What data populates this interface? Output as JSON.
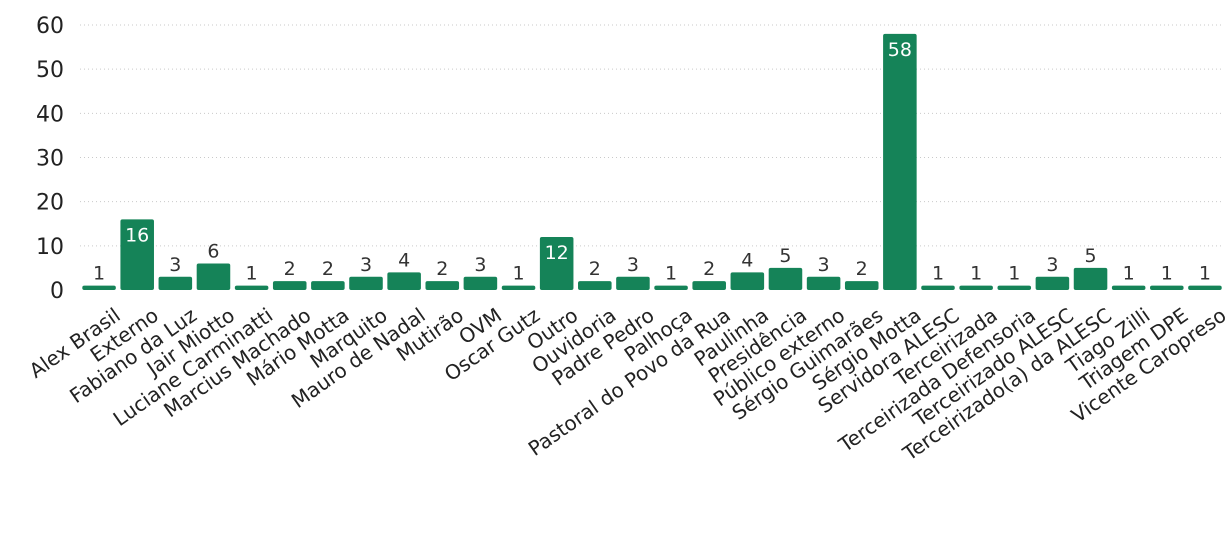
{
  "chart_data": {
    "type": "bar",
    "title": "",
    "xlabel": "",
    "ylabel": "",
    "ylim": [
      0,
      60
    ],
    "yticks": [
      0,
      10,
      20,
      30,
      40,
      50,
      60
    ],
    "grid": true,
    "bar_color": "#158358",
    "label_color_inside": "#ffffff",
    "label_color_outside": "#333333",
    "categories": [
      "Alex Brasil",
      "Externo",
      "Fabiano da Luz",
      "Jair Miotto",
      "Luciane Carminatti",
      "Marcius Machado",
      "Mário Motta",
      "Marquito",
      "Mauro de Nadal",
      "Mutirão",
      "OVM",
      "Oscar Gutz",
      "Outro",
      "Ouvidoria",
      "Padre Pedro",
      "Palhoça",
      "Pastoral do Povo da Rua",
      "Paulinha",
      "Presidência",
      "Público externo",
      "Sérgio Guimarães",
      "Sérgio Motta",
      "Servidora ALESC",
      "Terceirizada",
      "Terceirizada Defensoria",
      "Terceirizado ALESC",
      "Terceirizado(a) da ALESC",
      "Tiago Zilli",
      "Triagem DPE",
      "Vicente Caropreso"
    ],
    "values": [
      1,
      16,
      3,
      6,
      1,
      2,
      2,
      3,
      4,
      2,
      3,
      1,
      12,
      2,
      3,
      1,
      2,
      4,
      5,
      3,
      2,
      58,
      1,
      1,
      1,
      3,
      5,
      1,
      1,
      1
    ],
    "inside_labels": [
      "Externo",
      "Outro",
      "Sérgio Motta"
    ]
  }
}
